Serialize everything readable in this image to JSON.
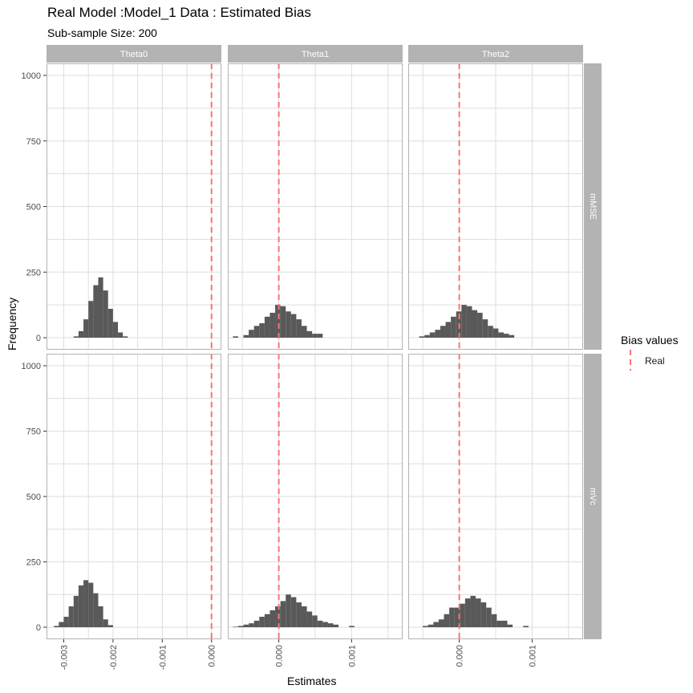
{
  "title": "Real Model :Model_1 Data : Estimated Bias",
  "subtitle": "Sub-sample Size: 200",
  "x_axis_title": "Estimates",
  "y_axis_title": "Frequency",
  "legend": {
    "title": "Bias values",
    "entry": "Real",
    "color": "#f8766d"
  },
  "colors": {
    "bar": "#595959",
    "strip": "#b3b3b3",
    "grid": "#dedede",
    "panel_border": "#b3b3b3"
  },
  "chart_data": {
    "type": "bar",
    "layout": "facet_grid",
    "columns": [
      "Theta0",
      "Theta1",
      "Theta2"
    ],
    "rows": [
      "mMSE",
      "mVc"
    ],
    "ylim": [
      0,
      1000
    ],
    "y_ticks": [
      0,
      250,
      500,
      750,
      1000
    ],
    "grid": true,
    "legend_position": "right",
    "reference_line": {
      "name": "Real",
      "value": 0,
      "style": "dashed"
    },
    "column_x": [
      {
        "xlim": [
          -0.00335,
          0.0002
        ],
        "ticks": [
          -0.003,
          -0.002,
          -0.001,
          0.0
        ],
        "tick_labels": [
          "-0.003",
          "-0.002",
          "-0.001",
          "0.000"
        ]
      },
      {
        "xlim": [
          -0.0007,
          0.0017
        ],
        "ticks": [
          0.0,
          0.001
        ],
        "tick_labels": [
          "0.000",
          "0.001"
        ]
      },
      {
        "xlim": [
          -0.0007,
          0.0017
        ],
        "ticks": [
          0.0,
          0.001
        ],
        "tick_labels": [
          "0.000",
          "0.001"
        ]
      }
    ],
    "panels": [
      {
        "row": "mMSE",
        "column": "Theta0",
        "bin_start": -0.0028,
        "bin_width": 0.0001,
        "counts": [
          5,
          25,
          70,
          140,
          200,
          230,
          180,
          110,
          60,
          20,
          5
        ]
      },
      {
        "row": "mMSE",
        "column": "Theta1",
        "bin_start": -0.00063,
        "bin_width": 7.25e-05,
        "counts": [
          5,
          0,
          10,
          30,
          45,
          55,
          80,
          95,
          125,
          120,
          100,
          90,
          70,
          45,
          25,
          15,
          15
        ]
      },
      {
        "row": "mMSE",
        "column": "Theta2",
        "bin_start": -0.00055,
        "bin_width": 7.25e-05,
        "counts": [
          5,
          10,
          20,
          30,
          45,
          60,
          80,
          100,
          125,
          120,
          105,
          95,
          70,
          45,
          35,
          20,
          15,
          10
        ]
      },
      {
        "row": "mVc",
        "column": "Theta0",
        "bin_start": -0.0032,
        "bin_width": 0.0001,
        "counts": [
          5,
          20,
          40,
          80,
          120,
          160,
          180,
          170,
          130,
          80,
          30,
          8
        ]
      },
      {
        "row": "mVc",
        "column": "Theta1",
        "bin_start": -0.00063,
        "bin_width": 7.25e-05,
        "counts": [
          2,
          5,
          10,
          15,
          25,
          40,
          50,
          65,
          80,
          100,
          125,
          115,
          95,
          80,
          60,
          45,
          25,
          20,
          15,
          10,
          0,
          0,
          5
        ]
      },
      {
        "row": "mVc",
        "column": "Theta2",
        "bin_start": -0.0005,
        "bin_width": 7.25e-05,
        "counts": [
          5,
          10,
          20,
          30,
          50,
          75,
          75,
          90,
          110,
          120,
          110,
          95,
          75,
          50,
          25,
          25,
          10,
          0,
          0,
          5
        ]
      }
    ]
  }
}
